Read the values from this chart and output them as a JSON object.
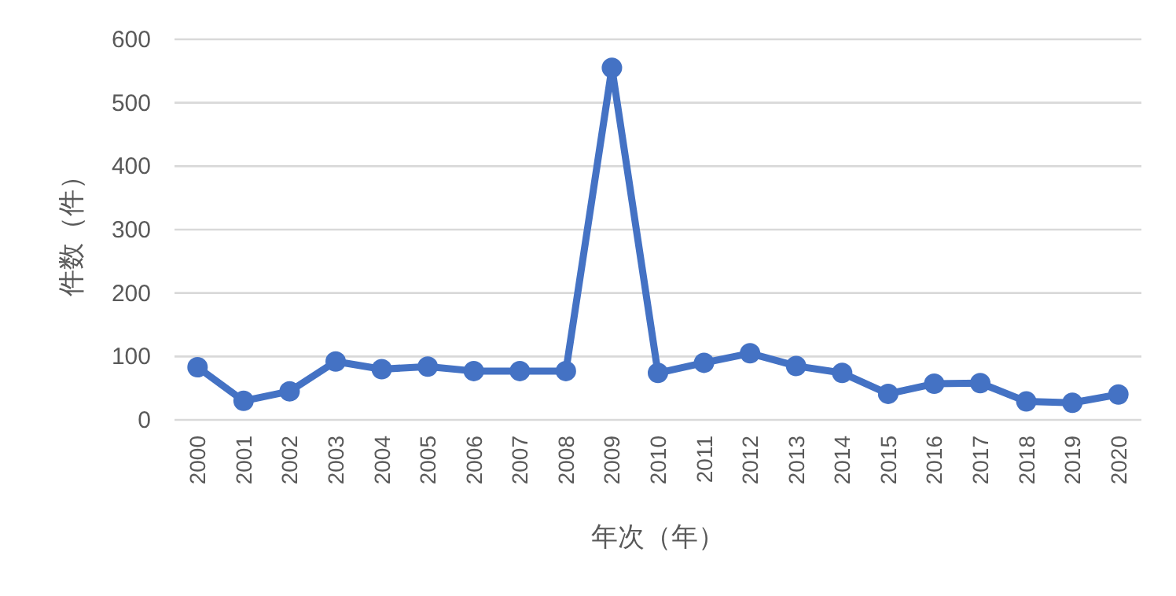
{
  "chart_data": {
    "type": "line",
    "xlabel": "年次（年）",
    "ylabel": "件数（件）",
    "categories": [
      "2000",
      "2001",
      "2002",
      "2003",
      "2004",
      "2005",
      "2006",
      "2007",
      "2008",
      "2009",
      "2010",
      "2011",
      "2012",
      "2013",
      "2014",
      "2015",
      "2016",
      "2017",
      "2018",
      "2019",
      "2020"
    ],
    "series": [
      {
        "color": "#4472c4",
        "values": [
          83,
          30,
          45,
          92,
          80,
          84,
          77,
          77,
          77,
          555,
          74,
          90,
          105,
          85,
          74,
          41,
          57,
          58,
          29,
          27,
          40
        ]
      }
    ],
    "ylim": [
      0,
      600
    ],
    "yticks": [
      0,
      100,
      200,
      300,
      400,
      500,
      600
    ],
    "grid": "y",
    "marker": "circle",
    "line_style": "solid"
  }
}
